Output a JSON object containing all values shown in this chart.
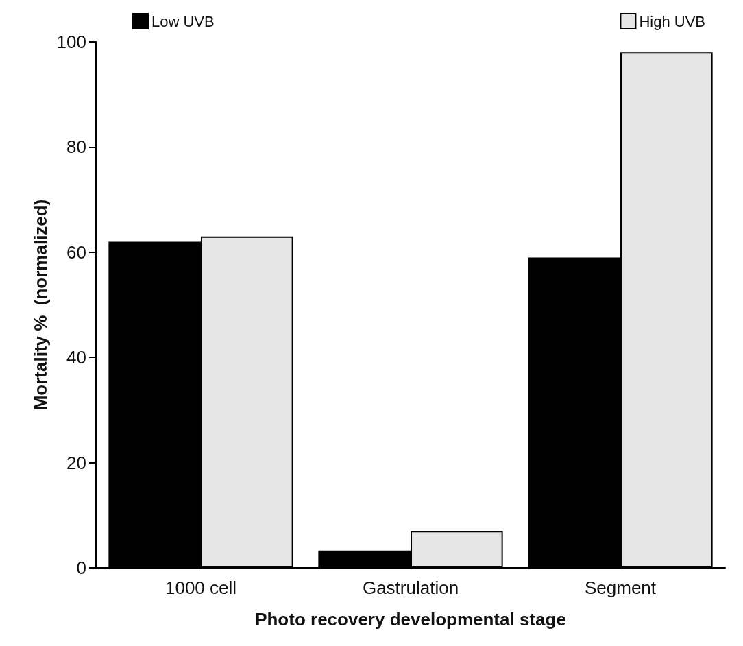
{
  "chart_data": {
    "type": "bar",
    "xlabel": "Photo recovery developmental stage",
    "ylabel": "Mortality %  (normalized)",
    "categories": [
      "1000 cell",
      "Gastrulation",
      "Segment"
    ],
    "series": [
      {
        "name": "Low UVB",
        "color": "#000000",
        "values": [
          62,
          3.3,
          59
        ]
      },
      {
        "name": "High UVB",
        "color": "#e6e6e6",
        "values": [
          63,
          7,
          98
        ]
      }
    ],
    "ylim": [
      0,
      100
    ],
    "yticks": [
      0,
      20,
      40,
      60,
      80,
      100
    ],
    "grid": false,
    "legend": "top"
  }
}
